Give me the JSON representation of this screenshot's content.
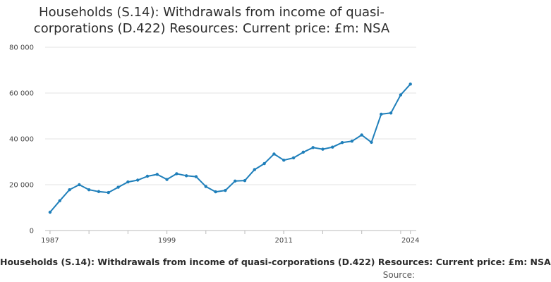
{
  "chart_data": {
    "type": "line",
    "title": "Households (S.14): Withdrawals from income of quasi-corporations (D.422) Resources: Current price: £m: NSA",
    "xlabel": "",
    "ylabel": "",
    "ylim": [
      0,
      80000
    ],
    "y_ticks": [
      0,
      20000,
      40000,
      60000,
      80000
    ],
    "y_tick_labels": [
      "0",
      "20 000",
      "40 000",
      "60 000",
      "80 000"
    ],
    "x_ticks": [
      1987,
      1999,
      2011,
      2024
    ],
    "x_tick_labels": [
      "1987",
      "1999",
      "2011",
      "2024"
    ],
    "grid": true,
    "series": [
      {
        "name": "",
        "color": "#1f7fba",
        "x": [
          1987,
          1988,
          1989,
          1990,
          1991,
          1992,
          1993,
          1994,
          1995,
          1996,
          1997,
          1998,
          1999,
          2000,
          2001,
          2002,
          2003,
          2004,
          2005,
          2006,
          2007,
          2008,
          2009,
          2010,
          2011,
          2012,
          2013,
          2014,
          2015,
          2016,
          2017,
          2018,
          2019,
          2020,
          2021,
          2022,
          2023,
          2024
        ],
        "values": [
          8000,
          13000,
          17800,
          20000,
          17800,
          17000,
          16600,
          18900,
          21200,
          22000,
          23700,
          24500,
          22300,
          24800,
          23900,
          23500,
          19200,
          16900,
          17500,
          21600,
          21800,
          26600,
          29200,
          33400,
          30700,
          31700,
          34200,
          36200,
          35500,
          36400,
          38400,
          39000,
          41700,
          38500,
          50800,
          51300,
          59200,
          63900
        ]
      }
    ]
  },
  "footer": {
    "title": "Households (S.14): Withdrawals from income of quasi-corporations (D.422) Resources: Current price: £m: NSA",
    "source": "Source:"
  }
}
